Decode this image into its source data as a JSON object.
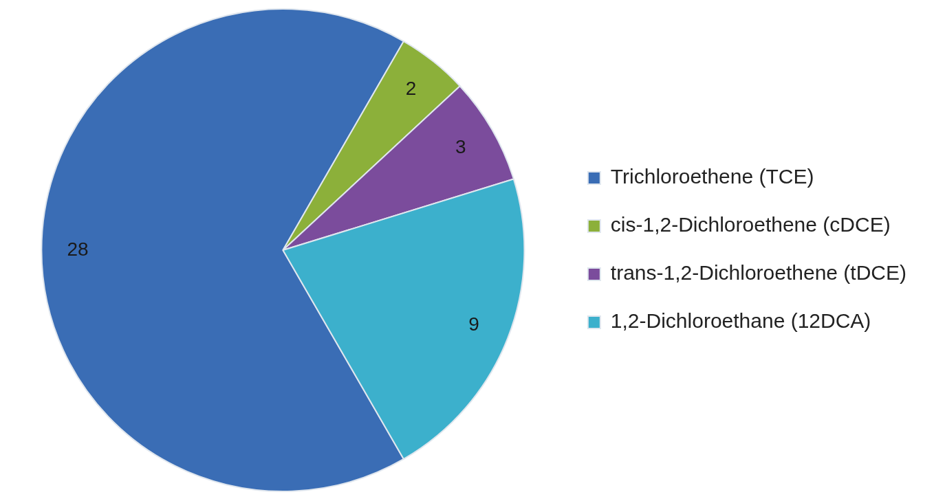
{
  "chart_data": {
    "type": "pie",
    "categories": [
      "Trichloroethene (TCE)",
      "cis-1,2-Dichloroethene (cDCE)",
      "trans-1,2-Dichloroethene (tDCE)",
      "1,2-Dichloroethane (12DCA)"
    ],
    "values": [
      28,
      2,
      3,
      9
    ],
    "colors": [
      "#3a6db5",
      "#8cb03a",
      "#7b4c9c",
      "#3cb0cc"
    ],
    "data_labels": true,
    "legend": "right"
  }
}
